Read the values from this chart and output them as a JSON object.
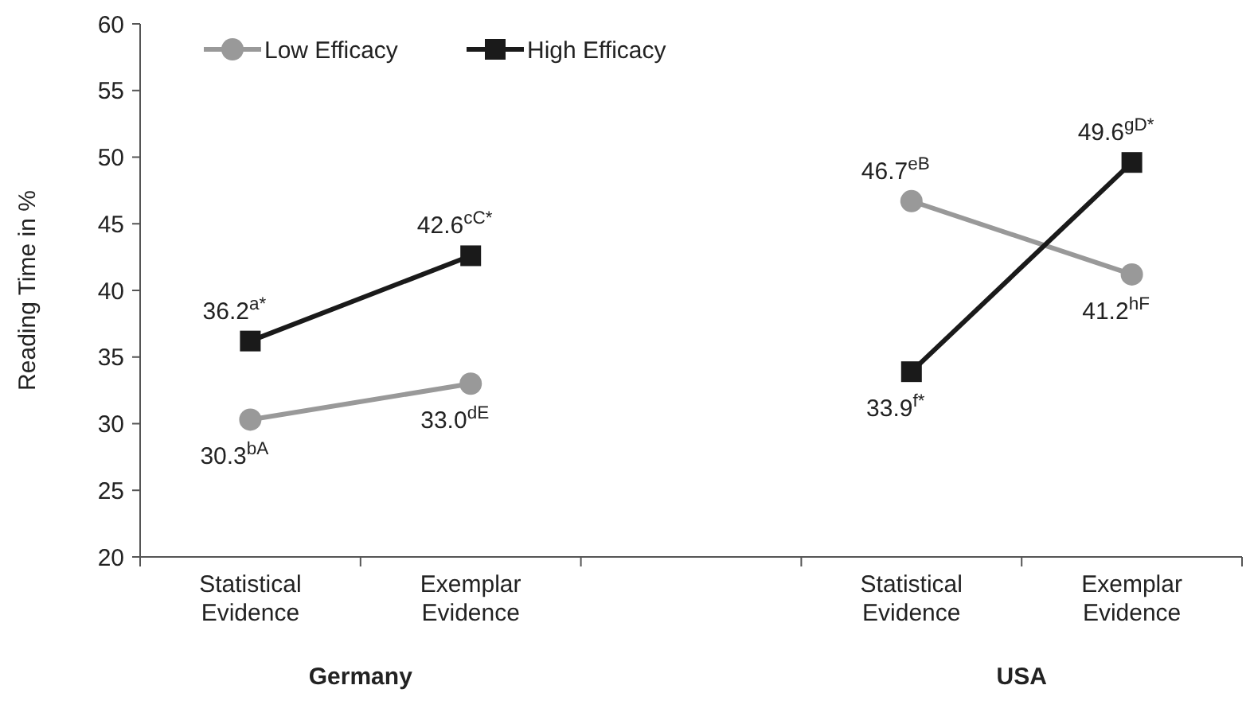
{
  "chart_data": {
    "type": "line",
    "ylabel": "Reading Time in %",
    "categories": [
      "Statistical Evidence",
      "Exemplar Evidence",
      null,
      "Statistical Evidence",
      "Exemplar Evidence"
    ],
    "series": [
      {
        "name": "Low Efficacy",
        "color": "#999999",
        "marker": "circle",
        "values": [
          30.3,
          33.0,
          null,
          46.7,
          41.2
        ],
        "value_labels": [
          "30.3$^{bA}$",
          "33.0$^{dE}$",
          null,
          "46.7$^{eB}$",
          "41.2$^{hF}$"
        ]
      },
      {
        "name": "High Efficacy",
        "color": "#1a1a1a",
        "marker": "square",
        "values": [
          36.2,
          42.6,
          null,
          33.9,
          49.6
        ],
        "value_labels": [
          "36.2$^{a*}$",
          "42.6$^{cC*}$",
          null,
          "33.9$^{f*}$",
          "49.6$^{gD*}$"
        ]
      }
    ],
    "ylim": [
      20,
      60
    ],
    "yticks": [
      20,
      25,
      30,
      35,
      40,
      45,
      50,
      55,
      60
    ],
    "grid": false,
    "legend": "top left",
    "line_style": "solid",
    "annotations": [
      "Germany",
      "USA"
    ]
  }
}
